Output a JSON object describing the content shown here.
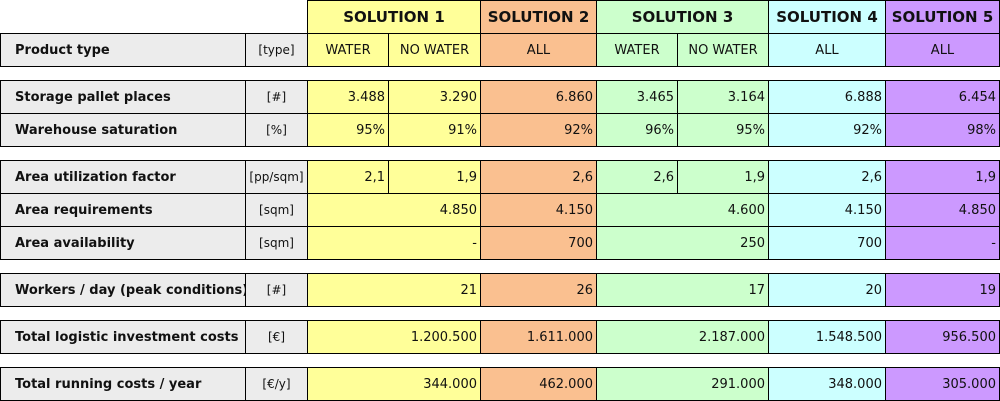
{
  "header": {
    "solutions": [
      "SOLUTION 1",
      "SOLUTION 2",
      "SOLUTION 3",
      "SOLUTION 4",
      "SOLUTION 5"
    ]
  },
  "product_type": {
    "label": "Product type",
    "unit": "[type]",
    "values": [
      "WATER",
      "NO WATER",
      "ALL",
      "WATER",
      "NO WATER",
      "ALL",
      "ALL"
    ]
  },
  "groups": [
    [
      {
        "label": "Storage pallet places",
        "unit": "[#]",
        "values": [
          "3.488",
          "3.290",
          "6.860",
          "3.465",
          "3.164",
          "6.888",
          "6.454"
        ]
      },
      {
        "label": "Warehouse saturation",
        "unit": "[%]",
        "values": [
          "95%",
          "91%",
          "92%",
          "96%",
          "95%",
          "92%",
          "98%"
        ]
      }
    ],
    [
      {
        "label": "Area utilization factor",
        "unit": "[pp/sqm]",
        "values": [
          "2,1",
          "1,9",
          "2,6",
          "2,6",
          "1,9",
          "2,6",
          "1,9"
        ]
      },
      {
        "label": "Area requirements",
        "unit": "[sqm]",
        "values": [
          "4.850",
          "4.150",
          "4.600",
          "4.150",
          "4.850"
        ]
      },
      {
        "label": "Area availability",
        "unit": "[sqm]",
        "values": [
          "-",
          "700",
          "250",
          "700",
          "-"
        ]
      }
    ],
    [
      {
        "label": "Workers / day (peak conditions)",
        "unit": "[#]",
        "values": [
          "21",
          "26",
          "17",
          "20",
          "19"
        ]
      }
    ],
    [
      {
        "label": "Total logistic investment costs",
        "unit": "[€]",
        "values": [
          "1.200.500",
          "1.611.000",
          "2.187.000",
          "1.548.500",
          "956.500"
        ]
      }
    ],
    [
      {
        "label": "Total running costs / year",
        "unit": "[€/y]",
        "values": [
          "344.000",
          "462.000",
          "291.000",
          "348.000",
          "305.000"
        ]
      }
    ]
  ]
}
